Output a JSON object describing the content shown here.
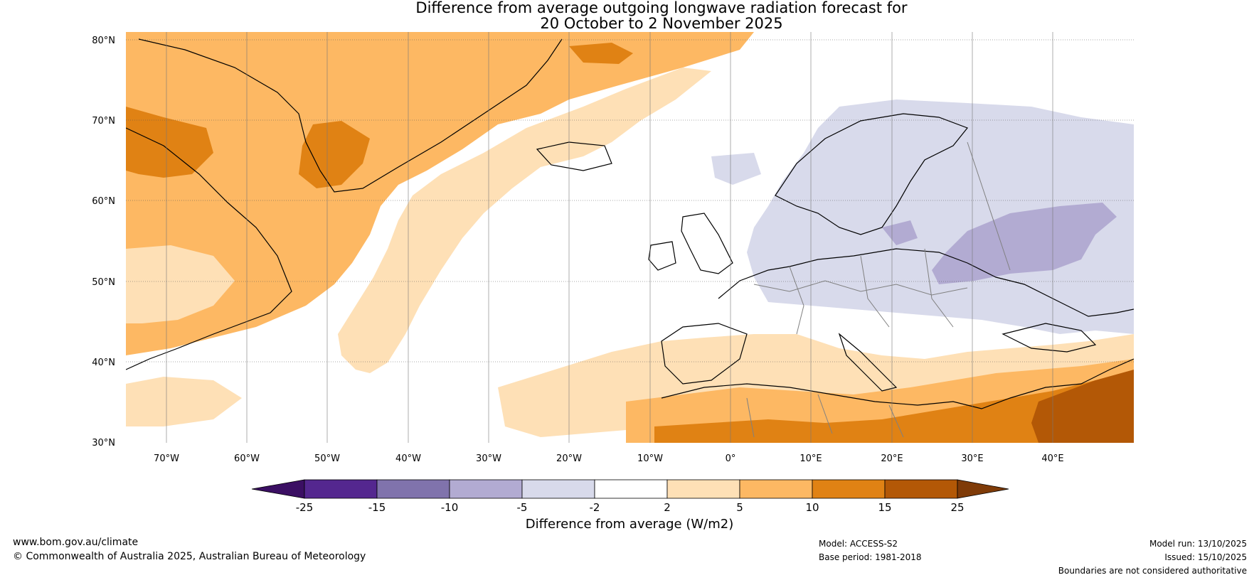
{
  "title": {
    "line1": "Difference from average outgoing longwave radiation forecast for",
    "line2": "20 October to 2 November 2025"
  },
  "map": {
    "lat_ticks": [
      "80°N",
      "70°N",
      "60°N",
      "50°N",
      "40°N",
      "30°N"
    ],
    "lon_ticks": [
      "70°W",
      "60°W",
      "50°W",
      "40°W",
      "30°W",
      "20°W",
      "10°W",
      "0°",
      "10°E",
      "20°E",
      "30°E",
      "40°E"
    ],
    "lat_range": [
      30,
      81
    ],
    "lon_range": [
      -75,
      50
    ],
    "regions": [
      {
        "name": "west-atlantic-warm",
        "class": "5 to 10"
      },
      {
        "name": "greenland-strong",
        "class": "10 to 15"
      },
      {
        "name": "mid-atlantic-light",
        "class": "2 to 5"
      },
      {
        "name": "europe-cool",
        "class": "-5 to -2"
      },
      {
        "name": "russia-cooler",
        "class": "-10 to -5"
      },
      {
        "name": "mediterranean-light",
        "class": "2 to 5"
      },
      {
        "name": "north-africa-warm",
        "class": "5 to 10"
      },
      {
        "name": "sahara-strong",
        "class": "10 to 15"
      },
      {
        "name": "middle-east-strongest",
        "class": "15 to 25"
      }
    ]
  },
  "colorbar": {
    "ticks": [
      "-25",
      "-15",
      "-10",
      "-5",
      "-2",
      "2",
      "5",
      "10",
      "15",
      "25"
    ],
    "colors": [
      "#3b0f63",
      "#54278f",
      "#8073ac",
      "#b2abd2",
      "#d8daeb",
      "#ffffff",
      "#fee0b6",
      "#fdb863",
      "#e08214",
      "#b35806",
      "#7f3b08"
    ],
    "label": "Difference from average (W/m2)"
  },
  "footer": {
    "website": "www.bom.gov.au/climate",
    "copyright": "© Commonwealth of Australia 2025, Australian Bureau of Meteorology",
    "model": "Model: ACCESS-S2",
    "base_period": "Base period: 1981-2018",
    "model_run": "Model run: 13/10/2025",
    "issued": "Issued: 15/10/2025",
    "disclaimer": "Boundaries are not considered authoritative"
  }
}
